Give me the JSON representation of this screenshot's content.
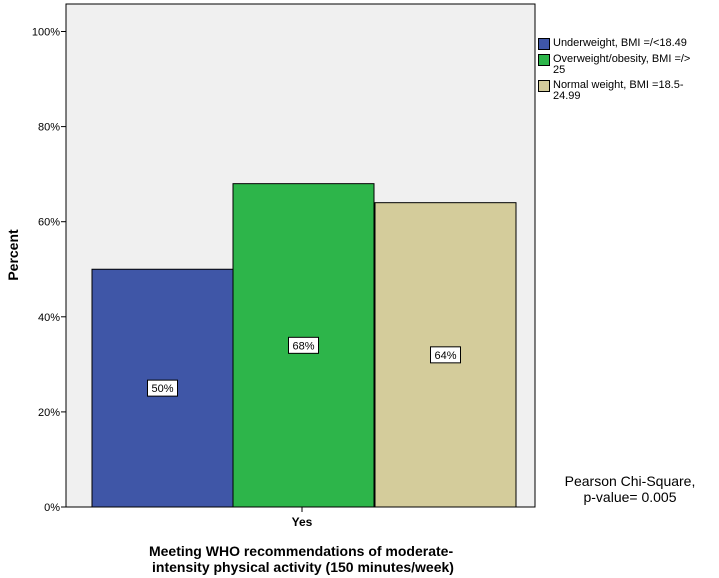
{
  "chart_data": {
    "type": "bar",
    "categories": [
      "Yes"
    ],
    "series": [
      {
        "name": "Underweight, BMI =/<18.49",
        "values": [
          50
        ],
        "label": "50%",
        "color": "#3f56a7"
      },
      {
        "name": "Overweight/obesity, BMI =/> 25",
        "values": [
          68
        ],
        "label": "68%",
        "color": "#2db54a"
      },
      {
        "name": "Normal weight, BMI =18.5-24.99",
        "values": [
          64
        ],
        "label": "64%",
        "color": "#d4cc9b"
      }
    ],
    "legend_lines": [
      [
        "Underweight, BMI =/<18.49"
      ],
      [
        "Overweight/obesity, BMI =/>",
        "25"
      ],
      [
        "Normal weight, BMI =18.5-",
        "24.99"
      ]
    ],
    "ylabel": "Percent",
    "xlabel_lines": [
      "Meeting WHO recommendations of moderate-",
      "intensity physical activity (150 minutes/week)"
    ],
    "ylim": [
      0,
      100
    ],
    "yticks": [
      0,
      20,
      40,
      60,
      80,
      100
    ],
    "ytick_labels": [
      "0%",
      "20%",
      "40%",
      "60%",
      "80%",
      "100%"
    ],
    "plot_background": "#f0f0f0",
    "grid": false,
    "legend_position": "right"
  },
  "annotation": {
    "line1": "Pearson Chi-Square,",
    "line2": "p-value= 0.005"
  }
}
